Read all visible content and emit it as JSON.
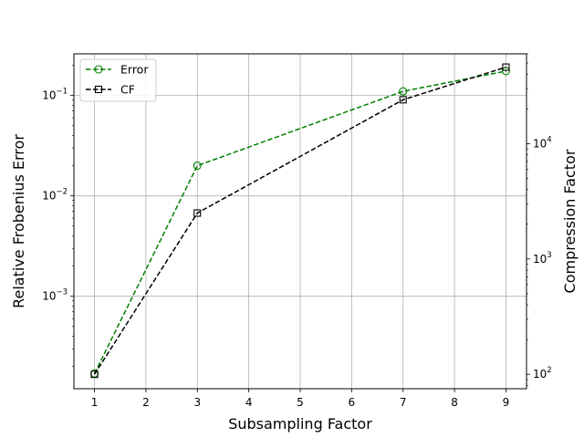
{
  "chart_data": {
    "type": "line",
    "title": "",
    "xlabel": "Subsampling Factor",
    "ylabel_left": "Relative Frobenius Error",
    "ylabel_right": "Compression Factor",
    "x_ticks": [
      "1",
      "2",
      "3",
      "4",
      "5",
      "6",
      "7",
      "8",
      "9"
    ],
    "x_range": [
      0.6,
      9.4
    ],
    "grid": true,
    "legend_position": "top-left",
    "left_axis": {
      "scale": "log",
      "range": [
        0.00012,
        0.26
      ],
      "ticks": [
        {
          "value": 0.001,
          "base": "10",
          "exp": "−3"
        },
        {
          "value": 0.01,
          "base": "10",
          "exp": "−2"
        },
        {
          "value": 0.1,
          "base": "10",
          "exp": "−1"
        }
      ]
    },
    "right_axis": {
      "scale": "log",
      "range": [
        75,
        60000
      ],
      "ticks": [
        {
          "value": 100,
          "base": "10",
          "exp": "2"
        },
        {
          "value": 1000,
          "base": "10",
          "exp": "3"
        },
        {
          "value": 10000,
          "base": "10",
          "exp": "4"
        }
      ]
    },
    "series": [
      {
        "name": "Error",
        "axis": "left",
        "color": "#008000",
        "marker": "circle",
        "x": [
          1,
          3,
          7,
          9
        ],
        "y": [
          0.00017,
          0.02,
          0.11,
          0.175
        ]
      },
      {
        "name": "CF",
        "axis": "right",
        "color": "#000000",
        "marker": "square",
        "x": [
          1,
          3,
          7,
          9
        ],
        "y": [
          100,
          2500,
          24000,
          46000
        ]
      }
    ]
  }
}
